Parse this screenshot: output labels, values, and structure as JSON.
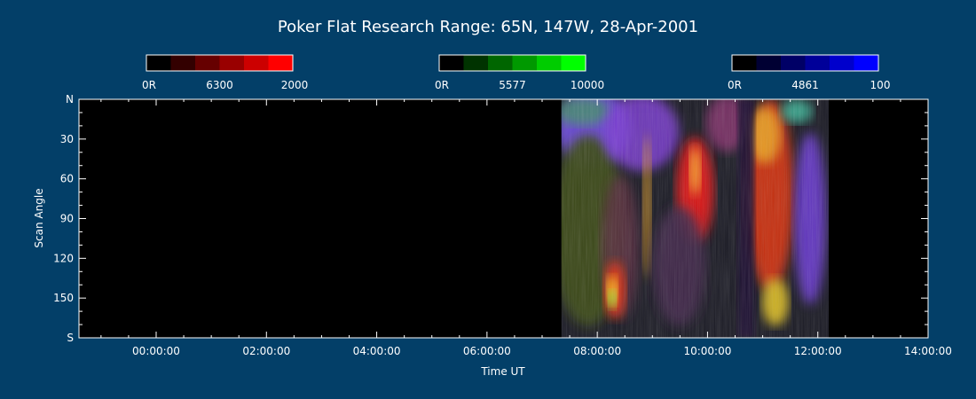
{
  "chart_data": {
    "type": "heatmap",
    "title": "Poker Flat Research Range: 65N, 147W, 28-Apr-2001",
    "xlabel": "Time UT",
    "ylabel": "Scan Angle",
    "x_range_hours": [
      -1.4,
      14.0
    ],
    "x_ticks": [
      {
        "hour": 0,
        "label": "00:00:00"
      },
      {
        "hour": 2,
        "label": "02:00:00"
      },
      {
        "hour": 4,
        "label": "04:00:00"
      },
      {
        "hour": 6,
        "label": "06:00:00"
      },
      {
        "hour": 8,
        "label": "08:00:00"
      },
      {
        "hour": 10,
        "label": "10:00:00"
      },
      {
        "hour": 12,
        "label": "12:00:00"
      },
      {
        "hour": 14,
        "label": "14:00:00"
      }
    ],
    "y_range": [
      0,
      180
    ],
    "y_ticks": [
      {
        "value": 0,
        "label": "N"
      },
      {
        "value": 30,
        "label": "30"
      },
      {
        "value": 60,
        "label": "60"
      },
      {
        "value": 90,
        "label": "90"
      },
      {
        "value": 120,
        "label": "120"
      },
      {
        "value": 150,
        "label": "150"
      },
      {
        "value": 180,
        "label": "S"
      }
    ],
    "colorbars": [
      {
        "wavelength": "6300",
        "min_label": "0R",
        "max_label": "2000",
        "color": "#ff0000",
        "levels": 6
      },
      {
        "wavelength": "5577",
        "min_label": "0R",
        "max_label": "10000",
        "color": "#00ff00",
        "levels": 6
      },
      {
        "wavelength": "4861",
        "min_label": "0R",
        "max_label": "100",
        "color": "#0000ff",
        "levels": 6
      }
    ],
    "data_intervals_hours": [
      {
        "start": 7.35,
        "end": 12.2
      }
    ],
    "background_color": "#033f68",
    "plot_background": "#000000"
  }
}
